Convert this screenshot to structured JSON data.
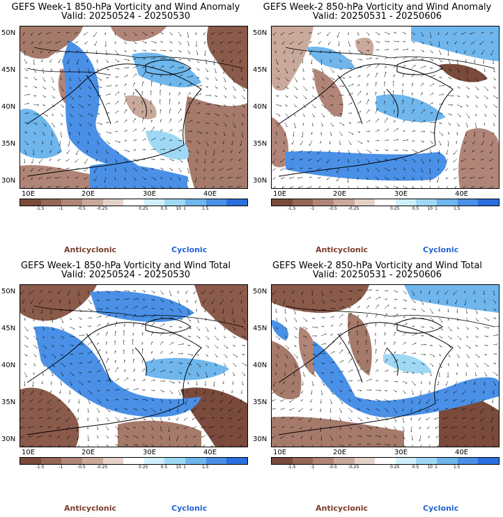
{
  "panels": [
    {
      "title": "GEFS Week-1 850-hPa Vorticity and Wind Anomaly",
      "valid": "Valid: 20250524 - 20250530"
    },
    {
      "title": "GEFS Week-2 850-hPa Vorticity and Wind Anomaly",
      "valid": "Valid: 20250531 - 20250606"
    },
    {
      "title": "GEFS Week-1 850-hPa Vorticity and Wind Total",
      "valid": "Valid: 20250524 - 20250530"
    },
    {
      "title": "GEFS Week-2 850-hPa Vorticity and Wind Total",
      "valid": "Valid: 20250531 - 20250606"
    }
  ],
  "axes": {
    "lat_labels": [
      "50N",
      "45N",
      "40N",
      "35N",
      "30N"
    ],
    "lon_labels": [
      "10E",
      "20E",
      "30E",
      "40E"
    ]
  },
  "colorbar": {
    "ticks": [
      "-1.5",
      "-1",
      "-0.5",
      "-0.25",
      "0.25",
      "0.5",
      "1",
      "1.5"
    ],
    "scale_label": "10",
    "colors": [
      "#7a4a3c",
      "#956555",
      "#b08578",
      "#c9a99b",
      "#e4d2c8",
      "#ffffff",
      "#cfeffc",
      "#9fd8f4",
      "#6fb6ec",
      "#4a90e6",
      "#2a6fde"
    ]
  },
  "legend": {
    "anticyclonic": "Anticyclonic",
    "cyclonic": "Cyclonic",
    "anticyclonic_color": "#7a3b2a",
    "cyclonic_color": "#1f62d6"
  }
}
